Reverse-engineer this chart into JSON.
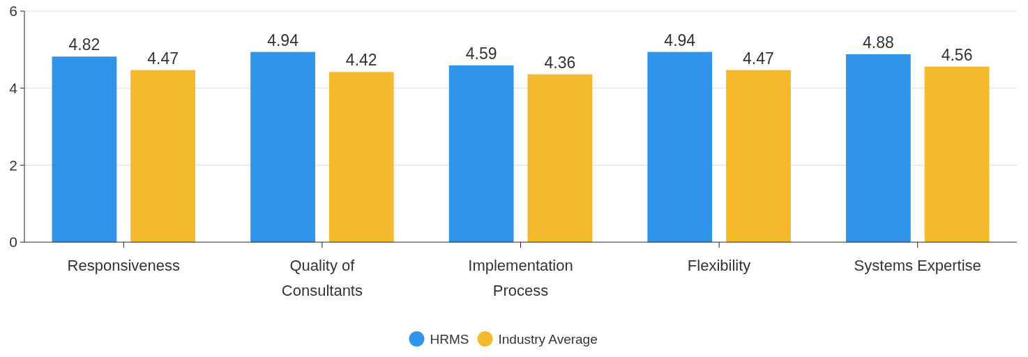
{
  "chart_data": {
    "type": "bar",
    "categories": [
      "Responsiveness",
      "Quality of Consultants",
      "Implementation Process",
      "Flexibility",
      "Systems Expertise"
    ],
    "series": [
      {
        "name": "HRMS",
        "color": "#3095e8",
        "values": [
          4.82,
          4.94,
          4.59,
          4.94,
          4.88
        ]
      },
      {
        "name": "Industry Average",
        "color": "#f5b92c",
        "values": [
          4.47,
          4.42,
          4.36,
          4.47,
          4.56
        ]
      }
    ],
    "ylim": [
      0,
      6
    ],
    "yticks": [
      0,
      2,
      4,
      6
    ],
    "grid": "y",
    "legend": "bottom",
    "data_labels": true
  }
}
